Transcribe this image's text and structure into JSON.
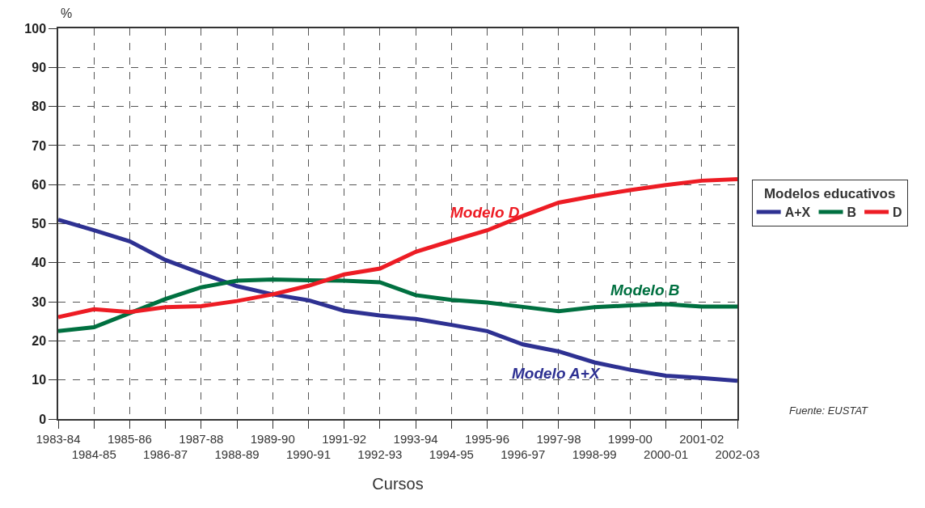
{
  "chart_data": {
    "type": "line",
    "categories": [
      "1983-84",
      "1984-85",
      "1985-86",
      "1986-87",
      "1987-88",
      "1988-89",
      "1989-90",
      "1990-91",
      "1991-92",
      "1992-93",
      "1993-94",
      "1994-95",
      "1995-96",
      "1996-97",
      "1997-98",
      "1998-99",
      "1999-00",
      "2000-01",
      "2001-02",
      "2002-03"
    ],
    "series": [
      {
        "name": "A+X",
        "color": "#2e3192",
        "values": [
          51.0,
          48.3,
          45.5,
          40.7,
          37.3,
          34.0,
          31.9,
          30.4,
          27.7,
          26.5,
          25.6,
          24.1,
          22.5,
          19.1,
          17.3,
          14.5,
          12.6,
          11.1,
          10.5,
          9.8
        ]
      },
      {
        "name": "B",
        "color": "#007040",
        "values": [
          22.5,
          23.5,
          27.1,
          30.7,
          33.7,
          35.4,
          35.7,
          35.5,
          35.4,
          35.0,
          31.7,
          30.5,
          29.8,
          28.7,
          27.6,
          28.6,
          29.1,
          29.4,
          28.8,
          28.8
        ]
      },
      {
        "name": "D",
        "color": "#ed1c24",
        "values": [
          26.1,
          28.1,
          27.4,
          28.6,
          28.9,
          30.2,
          31.9,
          34.1,
          37.0,
          38.5,
          42.8,
          45.6,
          48.3,
          52.0,
          55.4,
          57.1,
          58.6,
          59.9,
          61.0,
          61.4
        ]
      }
    ],
    "xlabel": "Cursos",
    "ylabel": "%",
    "legend_title": "Modelos educativos",
    "ylim": [
      0,
      100
    ],
    "yticks": [
      0,
      10,
      20,
      30,
      40,
      50,
      60,
      70,
      80,
      90,
      100
    ],
    "annotations": [
      "Modelo A+X",
      "Modelo B",
      "Modelo D",
      "Fuente: EUSTAT"
    ],
    "grid": true,
    "legend": "right",
    "marker": "none",
    "line_style": "solid"
  }
}
